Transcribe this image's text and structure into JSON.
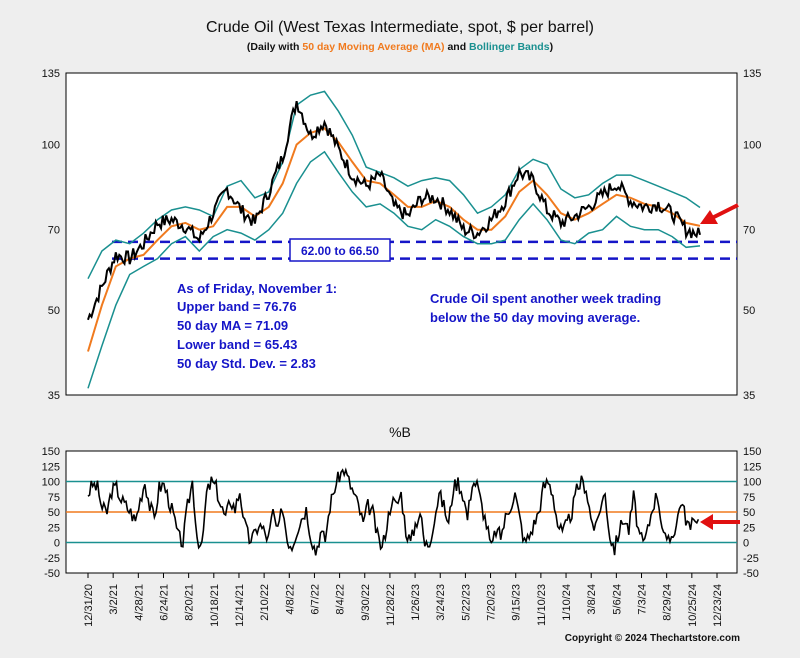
{
  "title": "Crude Oil (West Texas Intermediate, spot, $ per barrel)",
  "subtitle": {
    "prefix": "(Daily with ",
    "ma": "50 day Moving Average (MA)",
    "mid": " and ",
    "bb": "Bollinger Bands",
    "suffix": ")"
  },
  "copyright": "Copyright © 2024 Thechartstore.com",
  "colors": {
    "price": "#000000",
    "ma": "#f07a1e",
    "bands": "#1a9090",
    "annot": "#1515c8",
    "arrow": "#e01010",
    "bg": "#eeeeee",
    "plot": "#ffffff"
  },
  "chart_data": [
    {
      "type": "line",
      "scale": "log",
      "ylim": [
        35,
        135
      ],
      "yticks": [
        "135",
        "100",
        "70",
        "50",
        "35"
      ],
      "xticks": [
        "12/31/20",
        "3/2/21",
        "4/28/21",
        "6/24/21",
        "8/20/21",
        "10/18/21",
        "12/14/21",
        "2/10/22",
        "4/8/22",
        "6/7/22",
        "8/4/22",
        "9/30/22",
        "11/28/22",
        "1/26/23",
        "3/24/23",
        "5/22/23",
        "7/20/23",
        "9/15/23",
        "11/10/23",
        "1/10/24",
        "3/8/24",
        "5/6/24",
        "7/3/24",
        "8/29/24",
        "10/25/24",
        "12/23/24"
      ],
      "series": [
        {
          "key": "price",
          "values": [
            48,
            55,
            63,
            62,
            66,
            72,
            73,
            71,
            67,
            75,
            83,
            76,
            72,
            82,
            95,
            120,
            104,
            110,
            98,
            88,
            84,
            88,
            77,
            74,
            80,
            80,
            76,
            70,
            69,
            73,
            79,
            89,
            86,
            76,
            72,
            74,
            77,
            81,
            85,
            79,
            77,
            78,
            75,
            70,
            68.5
          ]
        },
        {
          "key": "ma",
          "values": [
            42,
            51,
            60,
            62,
            63,
            67,
            71,
            72,
            70,
            71,
            77,
            77,
            74,
            77,
            85,
            100,
            105,
            107,
            101,
            93,
            86,
            85,
            81,
            77,
            77,
            79,
            77,
            73,
            70,
            70,
            74,
            82,
            86,
            81,
            75,
            73,
            75,
            78,
            81,
            80,
            78,
            77,
            75,
            72,
            71.1
          ]
        },
        {
          "key": "upper",
          "values": [
            57,
            64,
            67,
            66,
            69,
            73,
            76,
            77,
            76,
            74,
            84,
            86,
            80,
            82,
            93,
            118,
            123,
            125,
            115,
            104,
            91,
            89,
            87,
            84,
            86,
            87,
            86,
            81,
            75,
            77,
            81,
            90,
            94,
            92,
            83,
            80,
            81,
            85,
            88,
            88,
            86,
            84,
            82,
            80,
            76.8
          ]
        },
        {
          "key": "lower",
          "values": [
            36,
            43,
            51,
            58,
            60,
            62,
            66,
            68,
            64,
            68,
            70,
            69,
            67,
            70,
            75,
            85,
            93,
            97,
            89,
            82,
            77,
            78,
            75,
            71,
            70,
            73,
            71,
            68,
            66,
            66,
            67,
            73,
            78,
            73,
            67,
            66,
            69,
            70,
            74,
            71,
            70,
            70,
            68,
            65,
            65.4
          ]
        }
      ],
      "support_zone": {
        "low": 62.0,
        "high": 66.5,
        "label": "62.00 to 66.50"
      },
      "annotations": {
        "stats": [
          "As of Friday, November 1:",
          "Upper band = 76.76",
          "50 day MA = 71.09",
          "Lower band = 65.43",
          "50 day Std. Dev. = 2.83"
        ],
        "note": [
          "Crude Oil spent another week trading",
          "below the 50 day moving average."
        ]
      }
    },
    {
      "type": "line",
      "title": "%B",
      "ylim": [
        -50,
        150
      ],
      "yticks": [
        "150",
        "125",
        "100",
        "75",
        "50",
        "25",
        "0",
        "-25",
        "-50"
      ],
      "reference_lines": [
        {
          "value": 100,
          "color": "teal"
        },
        {
          "value": 50,
          "color": "orange"
        },
        {
          "value": 0,
          "color": "teal"
        }
      ],
      "series": [
        {
          "key": "percent_b",
          "values": [
            80,
            95,
            90,
            55,
            50,
            85,
            90,
            70,
            60,
            50,
            35,
            70,
            100,
            60,
            40,
            90,
            95,
            70,
            45,
            10,
            0,
            60,
            100,
            10,
            -10,
            80,
            100,
            90,
            60,
            40,
            70,
            55,
            85,
            30,
            5,
            10,
            30,
            20,
            5,
            50,
            15,
            60,
            5,
            -5,
            20,
            40,
            55,
            10,
            -15,
            15,
            5,
            60,
            90,
            110,
            120,
            100,
            80,
            60,
            30,
            60,
            50,
            10,
            -10,
            30,
            70,
            60,
            80,
            20,
            0,
            30,
            50,
            -5,
            0,
            40,
            80,
            60,
            30,
            90,
            100,
            80,
            40,
            100,
            95,
            60,
            30,
            -10,
            20,
            10,
            40,
            60,
            80,
            40,
            0,
            10,
            30,
            50,
            90,
            100,
            80,
            30,
            15,
            30,
            50,
            85,
            100,
            90,
            40,
            20,
            60,
            80,
            10,
            -10,
            20,
            40,
            20,
            75,
            20,
            -5,
            20,
            60,
            80,
            30,
            -5,
            10,
            30,
            70,
            40,
            20,
            45,
            30
          ]
        }
      ]
    }
  ]
}
